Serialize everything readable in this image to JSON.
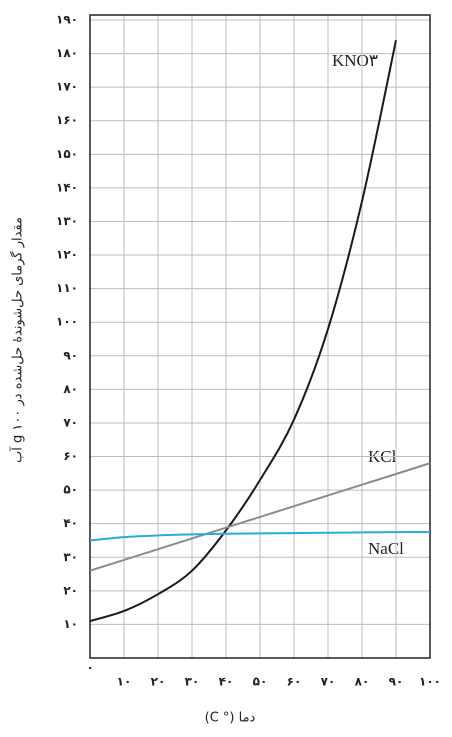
{
  "chart_data": {
    "type": "line",
    "x_label": "دما (° C)",
    "y_label": "مقدار گرمای حل‌شوندهٔ حل‌شده در ۱۰۰ g آب",
    "x": [
      0,
      10,
      20,
      30,
      40,
      50,
      60,
      70,
      80,
      90,
      100
    ],
    "series": [
      {
        "name": "KNO۳",
        "color": "#1a1a1a",
        "values": [
          11,
          14,
          19,
          26,
          38,
          53,
          71,
          98,
          136,
          184,
          null
        ]
      },
      {
        "name": "KCl",
        "color": "#8c8c8c",
        "values": [
          26,
          29.2,
          32.4,
          35.6,
          38.8,
          42,
          45.2,
          48.4,
          51.6,
          54.8,
          58
        ]
      },
      {
        "name": "NaCl",
        "color": "#29abe2",
        "values": [
          35,
          36,
          36.5,
          36.8,
          37,
          37.1,
          37.2,
          37.3,
          37.4,
          37.5,
          37.5
        ]
      }
    ],
    "xlim": [
      0,
      100
    ],
    "ylim": [
      0,
      190
    ],
    "xticks": [
      {
        "value": 0,
        "label": "۰"
      },
      {
        "value": 10,
        "label": "۱۰"
      },
      {
        "value": 20,
        "label": "۲۰"
      },
      {
        "value": 30,
        "label": "۳۰"
      },
      {
        "value": 40,
        "label": "۴۰"
      },
      {
        "value": 50,
        "label": "۵۰"
      },
      {
        "value": 60,
        "label": "۶۰"
      },
      {
        "value": 70,
        "label": "۷۰"
      },
      {
        "value": 80,
        "label": "۸۰"
      },
      {
        "value": 90,
        "label": "۹۰"
      },
      {
        "value": 100,
        "label": "۱۰۰"
      }
    ],
    "yticks": [
      {
        "value": 10,
        "label": "۱۰"
      },
      {
        "value": 20,
        "label": "۲۰"
      },
      {
        "value": 30,
        "label": "۳۰"
      },
      {
        "value": 40,
        "label": "۴۰"
      },
      {
        "value": 50,
        "label": "۵۰"
      },
      {
        "value": 60,
        "label": "۶۰"
      },
      {
        "value": 70,
        "label": "۷۰"
      },
      {
        "value": 80,
        "label": "۸۰"
      },
      {
        "value": 90,
        "label": "۹۰"
      },
      {
        "value": 100,
        "label": "۱۰۰"
      },
      {
        "value": 110,
        "label": "۱۱۰"
      },
      {
        "value": 120,
        "label": "۱۲۰"
      },
      {
        "value": 130,
        "label": "۱۳۰"
      },
      {
        "value": 140,
        "label": "۱۴۰"
      },
      {
        "value": 150,
        "label": "۱۵۰"
      },
      {
        "value": 160,
        "label": "۱۶۰"
      },
      {
        "value": 170,
        "label": "۱۷۰"
      },
      {
        "value": 180,
        "label": "۱۸۰"
      },
      {
        "value": 190,
        "label": "۱۹۰"
      }
    ],
    "grid": true
  }
}
